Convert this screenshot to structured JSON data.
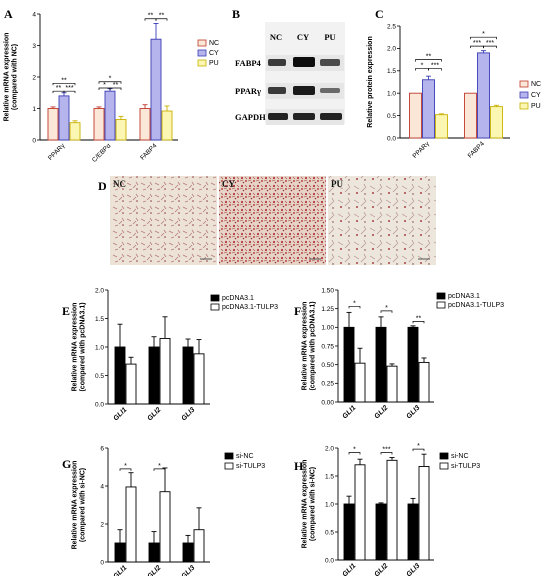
{
  "panel_labels": {
    "A": "A",
    "B": "B",
    "C": "C",
    "D": "D",
    "E": "E",
    "F": "F",
    "G": "G",
    "H": "H"
  },
  "colors": {
    "nc": "#fbe7d8",
    "cy": "#b5b4ec",
    "pu": "#fbf6b2",
    "nc_stroke": "#c0392b",
    "cy_stroke": "#3a3db5",
    "pu_stroke": "#c9b100",
    "ctrl": "#000000",
    "treat": "#ffffff"
  },
  "western_blot": {
    "lanes": [
      "NC",
      "CY",
      "PU"
    ],
    "proteins": [
      "FABP4",
      "PPARγ",
      "GAPDH"
    ]
  },
  "micrographs": {
    "labels": [
      "NC",
      "CY",
      "PU"
    ],
    "scale_bar_text": "100 μm"
  },
  "chart_data": [
    {
      "id": "A",
      "type": "bar",
      "ylabel": "Relative mRNA expression\n(compared with NC)",
      "ylim": [
        0,
        4
      ],
      "yticks": [
        "0",
        "1",
        "2",
        "3",
        "4"
      ],
      "categories": [
        "PPARγ",
        "C/EBPα",
        "FABP4"
      ],
      "series": [
        {
          "name": "NC",
          "values": [
            1.0,
            1.0,
            1.0
          ],
          "err": [
            0.05,
            0.05,
            0.12
          ]
        },
        {
          "name": "CY",
          "values": [
            1.4,
            1.55,
            3.2
          ],
          "err": [
            0.1,
            0.08,
            0.5
          ]
        },
        {
          "name": "PU",
          "values": [
            0.55,
            0.65,
            0.92
          ],
          "err": [
            0.06,
            0.1,
            0.16
          ]
        }
      ],
      "significance": [
        {
          "cat": 0,
          "from": 0,
          "to": 2,
          "label": "**",
          "y": 1.8
        },
        {
          "cat": 0,
          "from": 0,
          "to": 1,
          "label": "**",
          "y": 1.55
        },
        {
          "cat": 0,
          "from": 1,
          "to": 2,
          "label": "***",
          "y": 1.55
        },
        {
          "cat": 1,
          "from": 0,
          "to": 2,
          "label": "*",
          "y": 1.85
        },
        {
          "cat": 1,
          "from": 0,
          "to": 1,
          "label": "*",
          "y": 1.65
        },
        {
          "cat": 1,
          "from": 1,
          "to": 2,
          "label": "**",
          "y": 1.65
        },
        {
          "cat": 2,
          "from": 0,
          "to": 1,
          "label": "**",
          "y": 3.85
        },
        {
          "cat": 2,
          "from": 1,
          "to": 2,
          "label": "**",
          "y": 3.85
        }
      ],
      "legend": [
        "NC",
        "CY",
        "PU"
      ]
    },
    {
      "id": "C",
      "type": "bar",
      "ylabel": "Relative protein expression",
      "ylim": [
        0,
        2.5
      ],
      "yticks": [
        "0.0",
        "0.5",
        "1.0",
        "1.5",
        "2.0",
        "2.5"
      ],
      "categories": [
        "PPARγ",
        "FABP4"
      ],
      "series": [
        {
          "name": "NC",
          "values": [
            1.0,
            1.0
          ],
          "err": [
            0,
            0
          ]
        },
        {
          "name": "CY",
          "values": [
            1.3,
            1.9
          ],
          "err": [
            0.08,
            0.05
          ]
        },
        {
          "name": "PU",
          "values": [
            0.52,
            0.7
          ],
          "err": [
            0.02,
            0.03
          ]
        }
      ],
      "significance": [
        {
          "cat": 0,
          "from": 0,
          "to": 2,
          "label": "**",
          "y": 1.75
        },
        {
          "cat": 0,
          "from": 0,
          "to": 1,
          "label": "*",
          "y": 1.55
        },
        {
          "cat": 0,
          "from": 1,
          "to": 2,
          "label": "***",
          "y": 1.55
        },
        {
          "cat": 1,
          "from": 0,
          "to": 2,
          "label": "*",
          "y": 2.25
        },
        {
          "cat": 1,
          "from": 0,
          "to": 1,
          "label": "***",
          "y": 2.05
        },
        {
          "cat": 1,
          "from": 1,
          "to": 2,
          "label": "***",
          "y": 2.05
        }
      ],
      "legend": [
        "NC",
        "CY",
        "PU"
      ]
    },
    {
      "id": "E",
      "type": "bar",
      "ylabel": "Relative mRNA expression\n(compared with pcDNA3.1)",
      "ylim": [
        0,
        2.0
      ],
      "yticks": [
        "0.0",
        "0.5",
        "1.0",
        "1.5",
        "2.0"
      ],
      "categories": [
        "GLI1",
        "GLI2",
        "GLI3"
      ],
      "series": [
        {
          "name": "pcDNA3.1",
          "values": [
            1.0,
            1.0,
            1.0
          ],
          "err": [
            0.4,
            0.18,
            0.14
          ]
        },
        {
          "name": "pcDNA3.1-TULP3",
          "values": [
            0.7,
            1.15,
            0.88
          ],
          "err": [
            0.12,
            0.38,
            0.25
          ]
        }
      ],
      "significance": [],
      "legend": [
        "pcDNA3.1",
        "pcDNA3.1-TULP3"
      ]
    },
    {
      "id": "F",
      "type": "bar",
      "ylabel": "Relative mRNA expression\n(compared with pcDNA3.1)",
      "ylim": [
        0,
        1.5
      ],
      "yticks": [
        "0.00",
        "0.25",
        "0.50",
        "0.75",
        "1.00",
        "1.25",
        "1.50"
      ],
      "categories": [
        "GLI1",
        "GLI2",
        "GLI3"
      ],
      "series": [
        {
          "name": "pcDNA3.1",
          "values": [
            1.0,
            1.0,
            1.0
          ],
          "err": [
            0.2,
            0.14,
            0.02
          ]
        },
        {
          "name": "pcDNA3.1-TULP3",
          "values": [
            0.52,
            0.48,
            0.53
          ],
          "err": [
            0.2,
            0.03,
            0.06
          ]
        }
      ],
      "significance": [
        {
          "cat": 0,
          "from": 0,
          "to": 1,
          "label": "*",
          "y": 1.28
        },
        {
          "cat": 1,
          "from": 0,
          "to": 1,
          "label": "*",
          "y": 1.22
        },
        {
          "cat": 2,
          "from": 0,
          "to": 1,
          "label": "**",
          "y": 1.08
        }
      ],
      "legend": [
        "pcDNA3.1",
        "pcDNA3.1-TULP3"
      ]
    },
    {
      "id": "G",
      "type": "bar",
      "ylabel": "Relative mRNA expression\n(compared with si-NC)",
      "ylim": [
        0,
        6
      ],
      "yticks": [
        "0",
        "2",
        "4",
        "6"
      ],
      "categories": [
        "GLI1",
        "GLI2",
        "GLI3"
      ],
      "series": [
        {
          "name": "si-NC",
          "values": [
            1.0,
            1.0,
            1.0
          ],
          "err": [
            0.7,
            0.6,
            0.4
          ]
        },
        {
          "name": "si-TULP3",
          "values": [
            3.95,
            3.7,
            1.7
          ],
          "err": [
            0.75,
            1.25,
            1.15
          ]
        }
      ],
      "significance": [
        {
          "cat": 0,
          "from": 0,
          "to": 1,
          "label": "*",
          "y": 4.9
        },
        {
          "cat": 1,
          "from": 0,
          "to": 1,
          "label": "*",
          "y": 4.9
        }
      ],
      "legend": [
        "si-NC",
        "si-TULP3"
      ]
    },
    {
      "id": "H",
      "type": "bar",
      "ylabel": "Relative mRNA expression\n(compared with si-NC)",
      "ylim": [
        0,
        2.0
      ],
      "yticks": [
        "0.0",
        "0.5",
        "1.0",
        "1.5",
        "2.0"
      ],
      "categories": [
        "GLI1",
        "GLI2",
        "GLI3"
      ],
      "series": [
        {
          "name": "si-NC",
          "values": [
            1.0,
            1.0,
            1.0
          ],
          "err": [
            0.14,
            0.02,
            0.1
          ]
        },
        {
          "name": "si-TULP3",
          "values": [
            1.7,
            1.78,
            1.67
          ],
          "err": [
            0.1,
            0.05,
            0.22
          ]
        }
      ],
      "significance": [
        {
          "cat": 0,
          "from": 0,
          "to": 1,
          "label": "*",
          "y": 1.92
        },
        {
          "cat": 1,
          "from": 0,
          "to": 1,
          "label": "***",
          "y": 1.92
        },
        {
          "cat": 2,
          "from": 0,
          "to": 1,
          "label": "*",
          "y": 1.98
        }
      ],
      "legend": [
        "si-NC",
        "si-TULP3"
      ]
    }
  ]
}
